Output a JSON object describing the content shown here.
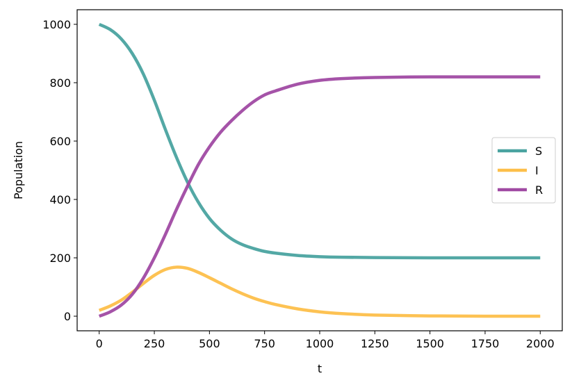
{
  "chart_data": {
    "type": "line",
    "title": "",
    "xlabel": "t",
    "ylabel": "Population",
    "xlim": [
      -100,
      2100
    ],
    "ylim": [
      -50,
      1050
    ],
    "xticks": [
      0,
      250,
      500,
      750,
      1000,
      1250,
      1500,
      1750,
      2000
    ],
    "yticks": [
      0,
      200,
      400,
      600,
      800,
      1000
    ],
    "grid": false,
    "legend": "center-right",
    "x": [
      0,
      50,
      100,
      150,
      200,
      250,
      300,
      350,
      400,
      450,
      500,
      550,
      600,
      650,
      700,
      750,
      800,
      900,
      1000,
      1100,
      1250,
      1500,
      1750,
      2000
    ],
    "series": [
      {
        "name": "S",
        "color": "#4aa3a0",
        "values": [
          1000,
          982,
          950,
          900,
          830,
          740,
          640,
          545,
          460,
          390,
          335,
          295,
          265,
          245,
          232,
          222,
          216,
          208,
          204,
          202,
          201,
          200,
          200,
          200
        ]
      },
      {
        "name": "I",
        "color": "#fdbf4a",
        "values": [
          20,
          35,
          55,
          82,
          112,
          140,
          160,
          168,
          164,
          150,
          132,
          113,
          94,
          77,
          62,
          50,
          40,
          25,
          15,
          9,
          4,
          1,
          0,
          0
        ]
      },
      {
        "name": "R",
        "color": "#a04aa3",
        "values": [
          0,
          15,
          38,
          75,
          130,
          200,
          280,
          365,
          445,
          520,
          580,
          630,
          670,
          705,
          735,
          758,
          772,
          795,
          808,
          814,
          818,
          820,
          820,
          820
        ]
      }
    ]
  }
}
